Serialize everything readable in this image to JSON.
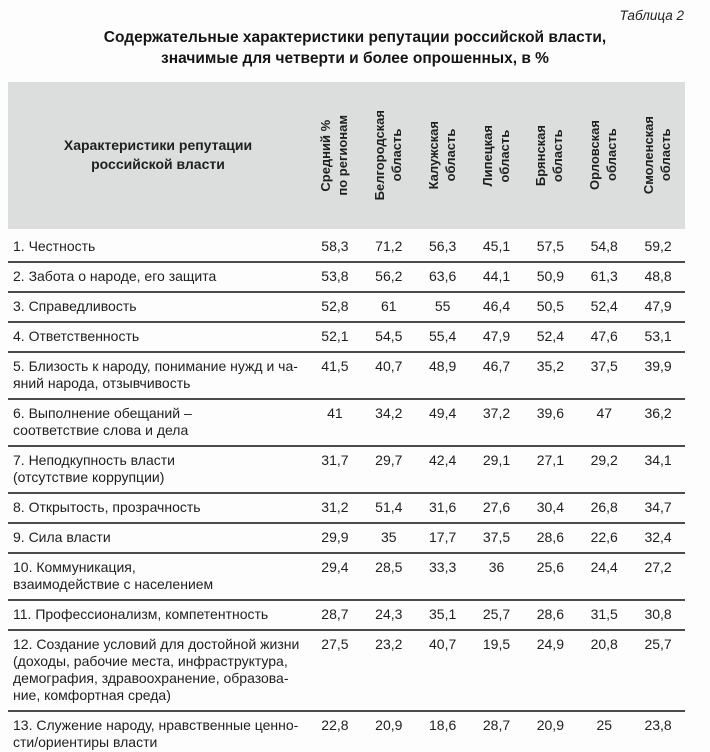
{
  "page": {
    "caption": "Таблица 2",
    "title": "Содержательные характеристики репутации российской власти,\nзначимые для четверти и более опрошенных, в %"
  },
  "colors": {
    "header_bg": "#dcdddd",
    "rule": "#4b4b4b",
    "text": "#1f1f1f"
  },
  "table": {
    "row_header": "Характеристики репутации\nроссийской власти",
    "columns": [
      "Средний %\nпо регионам",
      "Белгородская\nобласть",
      "Калужская\nобласть",
      "Липецкая\nобласть",
      "Брянская\nобласть",
      "Орловская\nобласть",
      "Смоленская\nобласть"
    ],
    "rows": [
      {
        "label": "1. Честность",
        "values": [
          "58,3",
          "71,2",
          "56,3",
          "45,1",
          "57,5",
          "54,8",
          "59,2"
        ]
      },
      {
        "label": "2. Забота о народе, его защита",
        "values": [
          "53,8",
          "56,2",
          "63,6",
          "44,1",
          "50,9",
          "61,3",
          "48,8"
        ]
      },
      {
        "label": "3. Справедливость",
        "values": [
          "52,8",
          "61",
          "55",
          "46,4",
          "50,5",
          "52,4",
          "47,9"
        ]
      },
      {
        "label": "4. Ответственность",
        "values": [
          "52,1",
          "54,5",
          "55,4",
          "47,9",
          "52,4",
          "47,6",
          "53,1"
        ]
      },
      {
        "label": "5. Близость к народу, понимание нужд и ча-\nяний народа, отзывчивость",
        "values": [
          "41,5",
          "40,7",
          "48,9",
          "46,7",
          "35,2",
          "37,5",
          "39,9"
        ]
      },
      {
        "label": "6. Выполнение обещаний –\nсоответствие слова и дела",
        "values": [
          "41",
          "34,2",
          "49,4",
          "37,2",
          "39,6",
          "47",
          "36,2"
        ]
      },
      {
        "label": "7. Неподкупность власти\n(отсутствие коррупции)",
        "values": [
          "31,7",
          "29,7",
          "42,4",
          "29,1",
          "27,1",
          "29,2",
          "34,1"
        ]
      },
      {
        "label": "8. Открытость, прозрачность",
        "values": [
          "31,2",
          "51,4",
          "31,6",
          "27,6",
          "30,4",
          "26,8",
          "34,7"
        ]
      },
      {
        "label": "9. Сила власти",
        "values": [
          "29,9",
          "35",
          "17,7",
          "37,5",
          "28,6",
          "22,6",
          "32,4"
        ]
      },
      {
        "label": "10. Коммуникация,\nвзаимодействие с населением",
        "values": [
          "29,4",
          "28,5",
          "33,3",
          "36",
          "25,6",
          "24,4",
          "27,2"
        ]
      },
      {
        "label": "11. Профессионализм, компетентность",
        "values": [
          "28,7",
          "24,3",
          "35,1",
          "25,7",
          "28,6",
          "31,5",
          "30,8"
        ]
      },
      {
        "label": "12. Создание условий для достойной жизни\n(доходы, рабочие места, инфраструктура,\nдемография, здравоохранение, образова-\nние, комфортная среда)",
        "values": [
          "27,5",
          "23,2",
          "40,7",
          "19,5",
          "24,9",
          "20,8",
          "25,7"
        ]
      },
      {
        "label": "13. Служение народу, нравственные ценно-\nсти/ориентиры власти",
        "values": [
          "22,8",
          "20,9",
          "18,6",
          "28,7",
          "20,9",
          "25",
          "23,8"
        ]
      }
    ]
  }
}
